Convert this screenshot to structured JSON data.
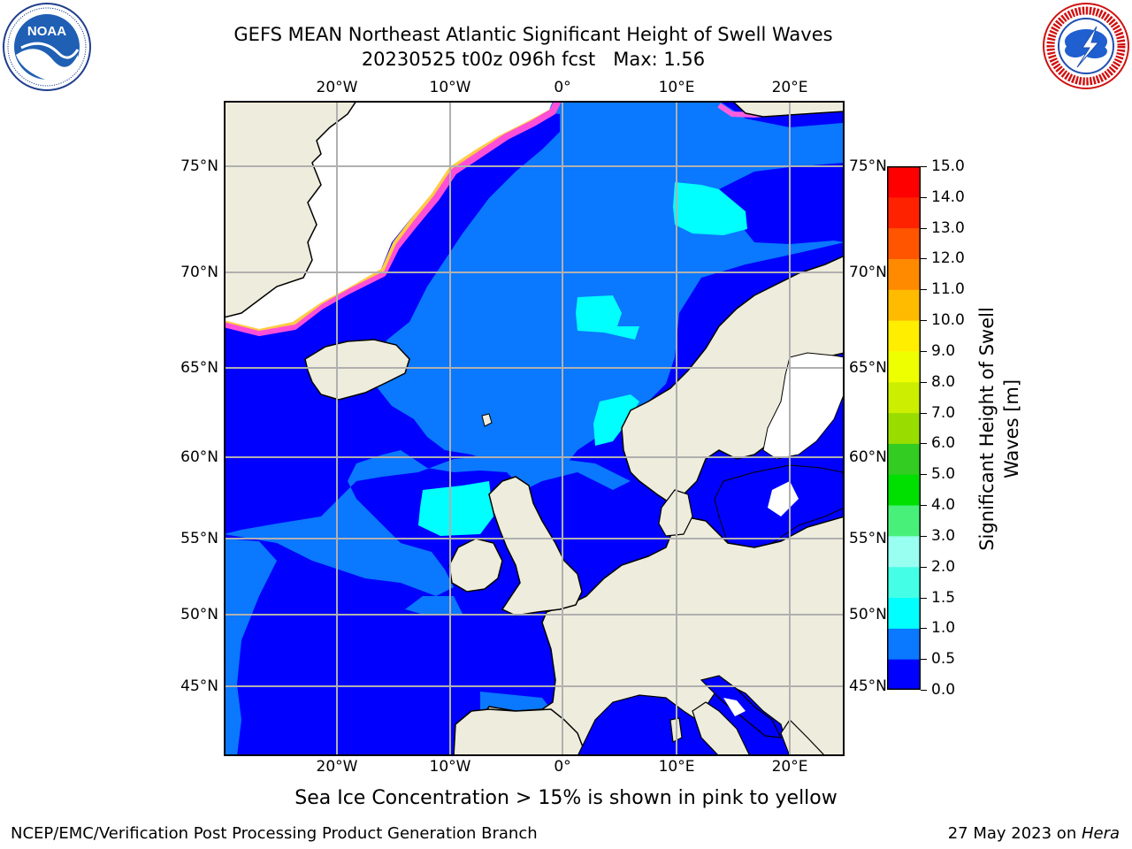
{
  "title": {
    "line1": "GEFS MEAN Northeast Atlantic Significant Height of Swell Waves",
    "line2": "20230525 t00z 096h fcst   Max: 1.56"
  },
  "logos": {
    "noaa": {
      "text": "NOAA",
      "ring_text": "NATIONAL OCEANIC AND ATMOSPHERIC ADMINISTRATION · U.S. DEPARTMENT OF COMMERCE"
    },
    "nws": {
      "ring_text": "NATIONAL WEATHER SERVICE"
    }
  },
  "map": {
    "longitude_labels": [
      "20°W",
      "10°W",
      "0°",
      "10°E",
      "20°E"
    ],
    "latitude_labels": [
      "75°N",
      "70°N",
      "65°N",
      "60°N",
      "55°N",
      "50°N",
      "45°N"
    ],
    "grid": true,
    "colors": {
      "land": "#eeecdc",
      "coastline": "#000000",
      "grid": "#b0b0b0",
      "no_data": "#ffffff"
    }
  },
  "colorbar": {
    "title_line1": "Significant Height of Swell",
    "title_line2": "Waves [m]",
    "labels": [
      "0.0",
      "0.5",
      "1.0",
      "1.5",
      "2.0",
      "3.0",
      "4.0",
      "5.0",
      "6.0",
      "7.0",
      "8.0",
      "9.0",
      "10.0",
      "11.0",
      "12.0",
      "13.0",
      "14.0",
      "15.0"
    ],
    "colors": [
      "#0000ff",
      "#0a78ff",
      "#00ffff",
      "#44ffe6",
      "#99fff0",
      "#48f07a",
      "#00e000",
      "#33cc22",
      "#99dd00",
      "#ccee00",
      "#eeff00",
      "#ffee00",
      "#ffbb00",
      "#ff8a00",
      "#ff5500",
      "#ff2200",
      "#ff0000"
    ]
  },
  "sea_ice_note": "Sea Ice Concentration > 15% is shown in pink to yellow",
  "footer": {
    "left": "NCEP/EMC/Verification Post Processing Product Generation Branch",
    "right_date": "27 May 2023 on ",
    "right_host": "Hera"
  }
}
